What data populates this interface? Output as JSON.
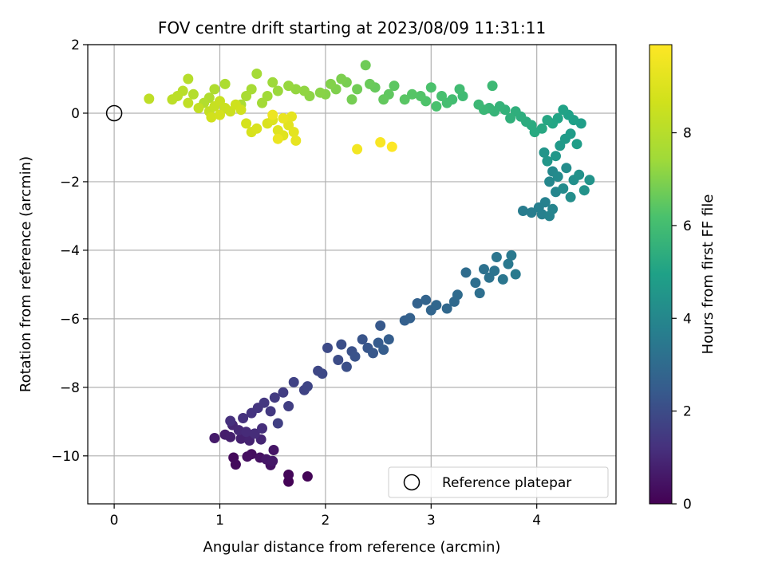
{
  "chart_data": {
    "type": "scatter",
    "title": "FOV centre drift starting at 2023/08/09 11:31:11",
    "xlabel": "Angular distance from reference (arcmin)",
    "ylabel": "Rotation from reference (arcmin)",
    "xlim": [
      -0.25,
      4.75
    ],
    "ylim": [
      -11.4,
      2.0
    ],
    "xticks": [
      0,
      1,
      2,
      3,
      4
    ],
    "yticks": [
      2,
      0,
      -2,
      -4,
      -6,
      -8,
      -10
    ],
    "grid": true,
    "legend": {
      "position": "lower-right",
      "entries": [
        "Reference platepar"
      ]
    },
    "reference_point": {
      "x": 0,
      "y": 0
    },
    "colorbar": {
      "label": "Hours from first FF file",
      "colormap": "viridis",
      "range": [
        0,
        9.9
      ],
      "ticks": [
        0,
        2,
        4,
        6,
        8
      ]
    },
    "series": [
      {
        "color_by": "hours",
        "points": [
          [
            1.65,
            -10.75,
            0.05
          ],
          [
            1.83,
            -10.6,
            0.1
          ],
          [
            1.65,
            -10.55,
            0.15
          ],
          [
            1.13,
            -10.05,
            0.2
          ],
          [
            1.15,
            -10.25,
            0.25
          ],
          [
            1.3,
            -9.95,
            0.3
          ],
          [
            1.26,
            -10.02,
            0.35
          ],
          [
            1.38,
            -10.05,
            0.4
          ],
          [
            1.48,
            -10.27,
            0.45
          ],
          [
            1.51,
            -9.83,
            0.5
          ],
          [
            1.44,
            -10.1,
            0.55
          ],
          [
            1.5,
            -10.15,
            0.6
          ],
          [
            0.95,
            -9.48,
            0.65
          ],
          [
            1.05,
            -9.38,
            0.7
          ],
          [
            1.1,
            -9.45,
            0.75
          ],
          [
            1.2,
            -9.5,
            0.8
          ],
          [
            1.28,
            -9.55,
            0.85
          ],
          [
            1.39,
            -9.52,
            0.9
          ],
          [
            1.12,
            -9.1,
            0.95
          ],
          [
            1.18,
            -9.25,
            1.0
          ],
          [
            1.25,
            -9.3,
            1.05
          ],
          [
            1.33,
            -9.35,
            1.1
          ],
          [
            1.4,
            -9.2,
            1.15
          ],
          [
            1.1,
            -8.98,
            1.2
          ],
          [
            1.22,
            -8.9,
            1.25
          ],
          [
            1.3,
            -8.75,
            1.3
          ],
          [
            1.36,
            -8.6,
            1.35
          ],
          [
            1.42,
            -8.45,
            1.4
          ],
          [
            1.48,
            -8.7,
            1.45
          ],
          [
            1.52,
            -8.3,
            1.5
          ],
          [
            1.6,
            -8.15,
            1.55
          ],
          [
            1.65,
            -8.55,
            1.6
          ],
          [
            1.55,
            -9.05,
            1.65
          ],
          [
            1.7,
            -7.85,
            1.7
          ],
          [
            1.8,
            -8.08,
            1.75
          ],
          [
            1.83,
            -7.97,
            1.8
          ],
          [
            1.93,
            -7.52,
            1.85
          ],
          [
            1.97,
            -7.6,
            1.9
          ],
          [
            2.02,
            -6.85,
            1.95
          ],
          [
            2.12,
            -7.2,
            2.0
          ],
          [
            2.15,
            -6.75,
            2.05
          ],
          [
            2.2,
            -7.4,
            2.1
          ],
          [
            2.25,
            -6.95,
            2.15
          ],
          [
            2.28,
            -7.1,
            2.2
          ],
          [
            2.35,
            -6.6,
            2.25
          ],
          [
            2.4,
            -6.85,
            2.3
          ],
          [
            2.45,
            -7.0,
            2.35
          ],
          [
            2.52,
            -6.2,
            2.4
          ],
          [
            2.5,
            -6.7,
            2.45
          ],
          [
            2.55,
            -6.9,
            2.5
          ],
          [
            2.6,
            -6.6,
            2.55
          ],
          [
            2.75,
            -6.05,
            2.6
          ],
          [
            2.8,
            -5.98,
            2.65
          ],
          [
            2.87,
            -5.55,
            2.7
          ],
          [
            2.95,
            -5.45,
            2.75
          ],
          [
            3.0,
            -5.75,
            2.8
          ],
          [
            3.05,
            -5.6,
            2.85
          ],
          [
            3.15,
            -5.7,
            2.9
          ],
          [
            3.22,
            -5.5,
            2.95
          ],
          [
            3.25,
            -5.3,
            3.0
          ],
          [
            3.33,
            -4.65,
            3.05
          ],
          [
            3.42,
            -4.95,
            3.1
          ],
          [
            3.46,
            -5.25,
            3.15
          ],
          [
            3.5,
            -4.55,
            3.2
          ],
          [
            3.55,
            -4.8,
            3.25
          ],
          [
            3.6,
            -4.6,
            3.3
          ],
          [
            3.62,
            -4.2,
            3.35
          ],
          [
            3.68,
            -4.85,
            3.4
          ],
          [
            3.73,
            -4.4,
            3.45
          ],
          [
            3.76,
            -4.15,
            3.5
          ],
          [
            3.8,
            -4.7,
            3.55
          ],
          [
            3.87,
            -2.85,
            3.6
          ],
          [
            3.95,
            -2.9,
            3.65
          ],
          [
            4.02,
            -2.75,
            3.7
          ],
          [
            4.05,
            -2.95,
            3.75
          ],
          [
            4.08,
            -2.6,
            3.8
          ],
          [
            4.12,
            -3.0,
            3.85
          ],
          [
            4.15,
            -2.8,
            3.9
          ],
          [
            4.18,
            -2.3,
            3.95
          ],
          [
            4.12,
            -2.0,
            4.0
          ],
          [
            4.15,
            -1.7,
            4.05
          ],
          [
            4.2,
            -1.85,
            4.1
          ],
          [
            4.25,
            -2.2,
            4.15
          ],
          [
            4.28,
            -1.6,
            4.2
          ],
          [
            4.32,
            -2.45,
            4.25
          ],
          [
            4.35,
            -1.95,
            4.3
          ],
          [
            4.4,
            -1.8,
            4.35
          ],
          [
            4.45,
            -2.25,
            4.4
          ],
          [
            4.5,
            -1.95,
            4.45
          ],
          [
            4.07,
            -1.15,
            4.5
          ],
          [
            4.1,
            -1.4,
            4.55
          ],
          [
            4.18,
            -1.25,
            4.6
          ],
          [
            4.22,
            -0.95,
            4.65
          ],
          [
            4.27,
            -0.75,
            4.7
          ],
          [
            4.32,
            -0.6,
            4.75
          ],
          [
            4.38,
            -0.9,
            4.8
          ],
          [
            4.42,
            -0.3,
            4.85
          ],
          [
            4.35,
            -0.2,
            4.9
          ],
          [
            4.3,
            -0.05,
            4.95
          ],
          [
            4.25,
            0.1,
            5.0
          ],
          [
            4.2,
            -0.15,
            5.05
          ],
          [
            4.15,
            -0.3,
            5.1
          ],
          [
            4.1,
            -0.2,
            5.15
          ],
          [
            4.05,
            -0.45,
            5.2
          ],
          [
            3.98,
            -0.55,
            5.25
          ],
          [
            3.95,
            -0.35,
            5.3
          ],
          [
            3.9,
            -0.25,
            5.35
          ],
          [
            3.85,
            -0.1,
            5.4
          ],
          [
            3.8,
            0.05,
            5.45
          ],
          [
            3.75,
            -0.15,
            5.5
          ],
          [
            3.7,
            0.1,
            5.55
          ],
          [
            3.65,
            0.2,
            5.6
          ],
          [
            3.6,
            0.05,
            5.65
          ],
          [
            3.55,
            0.15,
            5.7
          ],
          [
            3.5,
            0.1,
            5.75
          ],
          [
            3.45,
            0.25,
            5.8
          ],
          [
            3.58,
            0.8,
            5.85
          ],
          [
            3.3,
            0.5,
            5.9
          ],
          [
            3.27,
            0.7,
            5.95
          ],
          [
            3.2,
            0.4,
            6.0
          ],
          [
            3.15,
            0.3,
            6.05
          ],
          [
            3.1,
            0.5,
            6.1
          ],
          [
            3.05,
            0.2,
            6.15
          ],
          [
            3.0,
            0.75,
            6.2
          ],
          [
            2.95,
            0.35,
            6.25
          ],
          [
            2.9,
            0.5,
            6.3
          ],
          [
            2.82,
            0.55,
            6.35
          ],
          [
            2.75,
            0.4,
            6.4
          ],
          [
            2.65,
            0.8,
            6.45
          ],
          [
            2.6,
            0.55,
            6.5
          ],
          [
            2.55,
            0.4,
            6.55
          ],
          [
            2.47,
            0.75,
            6.6
          ],
          [
            2.42,
            0.85,
            6.65
          ],
          [
            2.38,
            1.4,
            6.7
          ],
          [
            2.3,
            0.7,
            6.75
          ],
          [
            2.25,
            0.4,
            6.8
          ],
          [
            2.2,
            0.9,
            6.85
          ],
          [
            2.15,
            1.0,
            6.9
          ],
          [
            2.1,
            0.7,
            6.95
          ],
          [
            2.05,
            0.85,
            7.0
          ],
          [
            2.0,
            0.55,
            7.05
          ],
          [
            1.95,
            0.6,
            7.1
          ],
          [
            1.85,
            0.5,
            7.15
          ],
          [
            1.8,
            0.65,
            7.2
          ],
          [
            1.72,
            0.7,
            7.25
          ],
          [
            1.65,
            0.8,
            7.3
          ],
          [
            1.55,
            0.65,
            7.35
          ],
          [
            1.5,
            0.9,
            7.4
          ],
          [
            1.45,
            0.5,
            7.45
          ],
          [
            1.4,
            0.3,
            7.5
          ],
          [
            1.35,
            1.15,
            7.55
          ],
          [
            1.3,
            0.7,
            7.6
          ],
          [
            1.25,
            0.5,
            7.65
          ],
          [
            1.2,
            0.25,
            7.7
          ],
          [
            1.05,
            0.85,
            7.75
          ],
          [
            0.95,
            0.7,
            7.8
          ],
          [
            0.9,
            0.45,
            7.85
          ],
          [
            0.85,
            0.3,
            7.9
          ],
          [
            0.75,
            0.55,
            7.95
          ],
          [
            0.7,
            1.0,
            8.0
          ],
          [
            0.65,
            0.65,
            8.05
          ],
          [
            0.6,
            0.5,
            8.1
          ],
          [
            0.55,
            0.4,
            8.15
          ],
          [
            0.33,
            0.42,
            8.2
          ],
          [
            0.7,
            0.3,
            8.25
          ],
          [
            0.8,
            0.15,
            8.3
          ],
          [
            0.9,
            0.05,
            8.35
          ],
          [
            0.95,
            0.2,
            8.4
          ],
          [
            1.0,
            0.35,
            8.45
          ],
          [
            1.05,
            0.15,
            8.5
          ],
          [
            1.1,
            0.05,
            8.55
          ],
          [
            1.15,
            0.25,
            8.6
          ],
          [
            1.2,
            0.1,
            8.65
          ],
          [
            0.92,
            -0.12,
            8.7
          ],
          [
            1.0,
            -0.05,
            8.75
          ],
          [
            1.25,
            -0.3,
            8.8
          ],
          [
            1.3,
            -0.55,
            8.85
          ],
          [
            1.35,
            -0.45,
            8.9
          ],
          [
            1.45,
            -0.3,
            8.95
          ],
          [
            1.5,
            -0.2,
            9.0
          ],
          [
            1.55,
            -0.5,
            9.05
          ],
          [
            1.6,
            -0.65,
            9.1
          ],
          [
            1.65,
            -0.35,
            9.15
          ],
          [
            1.7,
            -0.55,
            9.2
          ],
          [
            1.68,
            -0.1,
            9.25
          ],
          [
            1.72,
            -0.8,
            9.3
          ],
          [
            1.6,
            -0.15,
            9.35
          ],
          [
            1.55,
            -0.75,
            9.4
          ],
          [
            1.5,
            -0.05,
            9.45
          ],
          [
            2.3,
            -1.05,
            9.6
          ],
          [
            2.52,
            -0.85,
            9.75
          ],
          [
            2.63,
            -0.98,
            9.9
          ]
        ]
      }
    ]
  }
}
